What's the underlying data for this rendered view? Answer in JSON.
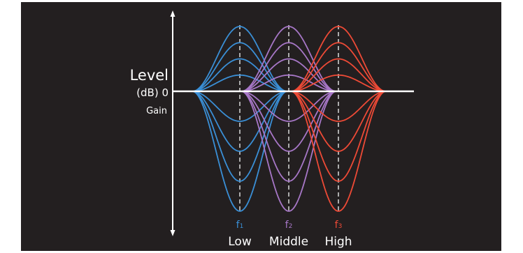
{
  "labels": {
    "level": "Level",
    "db_zero": "(dB) 0",
    "gain": "Gain"
  },
  "bands": [
    {
      "freq_label": "f",
      "freq_sub": "1",
      "name": "Low",
      "color": "#3a8fd6"
    },
    {
      "freq_label": "f",
      "freq_sub": "2",
      "name": "Middle",
      "color": "#a777c7"
    },
    {
      "freq_label": "f",
      "freq_sub": "3",
      "name": "High",
      "color": "#ee4a36"
    }
  ],
  "gain_levels": [
    1.0,
    0.75,
    0.5,
    0.25
  ],
  "colors": {
    "background": "#231f20",
    "axis": "#ffffff",
    "center_line": "#cfcfcf",
    "text": "#ffffff"
  }
}
